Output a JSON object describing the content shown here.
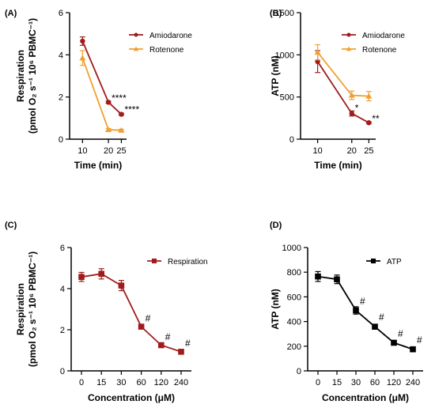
{
  "chart_data": [
    {
      "panel_label": "(A)",
      "type": "line",
      "x": [
        10,
        20,
        25
      ],
      "xticks": [
        "10",
        "20",
        "25"
      ],
      "xlim": [
        5,
        27
      ],
      "xlabel": "Time (min)",
      "ylabel_line1": "Respiration",
      "ylabel_line2": "(pmol O₂ s⁻¹ 10⁶ PBMC⁻¹)",
      "ylim": [
        0,
        6
      ],
      "yticks": [
        0,
        2,
        4,
        6
      ],
      "legend_position": "top-right",
      "series": [
        {
          "name": "Amiodarone",
          "color": "#a01c1c",
          "marker": "circle",
          "values": [
            4.65,
            1.75,
            1.18
          ],
          "errors": [
            0.2,
            0.05,
            0.05
          ]
        },
        {
          "name": "Rotenone",
          "color": "#f0a030",
          "marker": "triangle",
          "values": [
            3.85,
            0.45,
            0.42
          ],
          "errors": [
            0.35,
            0.05,
            0.05
          ]
        }
      ],
      "annotations": [
        {
          "x": 20,
          "y": 1.95,
          "text": "****"
        },
        {
          "x": 25,
          "y": 1.4,
          "text": "****"
        }
      ]
    },
    {
      "panel_label": "(B)",
      "type": "line",
      "x": [
        10,
        20,
        25
      ],
      "xticks": [
        "10",
        "20",
        "25"
      ],
      "xlim": [
        5,
        27
      ],
      "xlabel": "Time (min)",
      "ylabel_line1": "ATP (nM)",
      "ylabel_line2": "",
      "ylim": [
        0,
        1500
      ],
      "yticks": [
        0,
        500,
        1000,
        1500
      ],
      "legend_position": "top-right",
      "series": [
        {
          "name": "Amiodarone",
          "color": "#a01c1c",
          "marker": "circle",
          "values": [
            920,
            305,
            195
          ],
          "errors": [
            130,
            30,
            10
          ]
        },
        {
          "name": "Rotenone",
          "color": "#f0a030",
          "marker": "triangle",
          "values": [
            1030,
            520,
            510
          ],
          "errors": [
            90,
            50,
            55
          ]
        }
      ],
      "annotations": [
        {
          "x": 20,
          "y": 370,
          "text": "*"
        },
        {
          "x": 25,
          "y": 245,
          "text": "**"
        }
      ]
    },
    {
      "panel_label": "(C)",
      "type": "line",
      "categories": [
        "0",
        "15",
        "30",
        "60",
        "120",
        "240"
      ],
      "xlabel": "Concentration (μM)",
      "ylabel_line1": "Respiration",
      "ylabel_line2": "(pmol O₂ s⁻¹ 10⁶ PBMC⁻¹)",
      "ylim": [
        0,
        6
      ],
      "yticks": [
        0,
        2,
        4,
        6
      ],
      "legend_position": "top-right",
      "series": [
        {
          "name": "Respiration",
          "color": "#a01c1c",
          "marker": "square",
          "values": [
            4.57,
            4.72,
            4.15,
            2.15,
            1.25,
            0.93
          ],
          "errors": [
            0.22,
            0.25,
            0.25,
            0.1,
            0.05,
            0.05
          ]
        }
      ],
      "annotations": [
        {
          "index": 3,
          "y": 2.55,
          "text": "#"
        },
        {
          "index": 4,
          "y": 1.65,
          "text": "#"
        },
        {
          "index": 5,
          "y": 1.35,
          "text": "#"
        }
      ]
    },
    {
      "panel_label": "(D)",
      "type": "line",
      "categories": [
        "0",
        "15",
        "30",
        "60",
        "120",
        "240"
      ],
      "xlabel": "Concentration (μM)",
      "ylabel_line1": "ATP (nM)",
      "ylabel_line2": "",
      "ylim": [
        0,
        1000
      ],
      "yticks": [
        0,
        200,
        400,
        600,
        800,
        1000
      ],
      "legend_position": "top-right",
      "series": [
        {
          "name": "ATP",
          "color": "#000000",
          "marker": "square",
          "values": [
            765,
            742,
            490,
            358,
            228,
            175
          ],
          "errors": [
            40,
            35,
            30,
            18,
            10,
            8
          ]
        }
      ],
      "annotations": [
        {
          "index": 2,
          "y": 565,
          "text": "#"
        },
        {
          "index": 3,
          "y": 435,
          "text": "#"
        },
        {
          "index": 4,
          "y": 300,
          "text": "#"
        },
        {
          "index": 5,
          "y": 250,
          "text": "#"
        }
      ]
    }
  ]
}
